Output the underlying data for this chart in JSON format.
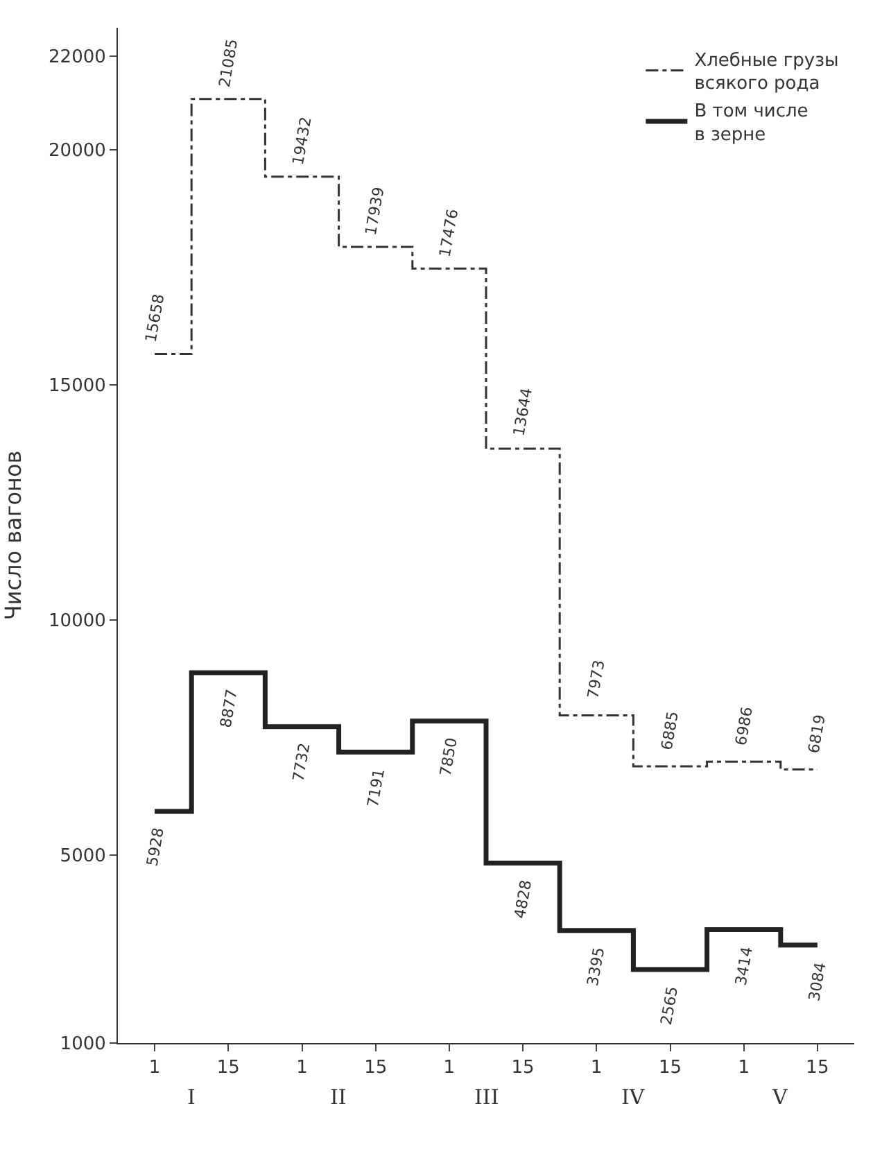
{
  "chart_data": {
    "type": "step",
    "ylabel": "Число вагонов",
    "categories": [
      "1",
      "15",
      "1",
      "15",
      "1",
      "15",
      "1",
      "15",
      "1",
      "15"
    ],
    "annotations": [
      "I",
      "II",
      "III",
      "IV",
      "V"
    ],
    "series": [
      {
        "name": "Хлебные грузы\nвсякого рода",
        "color": "#333333",
        "line_style": "dashdot",
        "values": [
          15658,
          21085,
          19432,
          17939,
          17476,
          13644,
          7973,
          6885,
          6986,
          6819
        ]
      },
      {
        "name": "В том числе\nв зерне",
        "color": "#222222",
        "line_style": "solid",
        "values": [
          5928,
          8877,
          7732,
          7191,
          7850,
          4828,
          3395,
          2565,
          3414,
          3084
        ]
      }
    ],
    "ylim": [
      1000,
      22600
    ],
    "yticks": [
      1000,
      5000,
      10000,
      15000,
      20000,
      22000
    ],
    "data_labels": true,
    "legend": "top right",
    "grid": false,
    "marker": "none"
  }
}
